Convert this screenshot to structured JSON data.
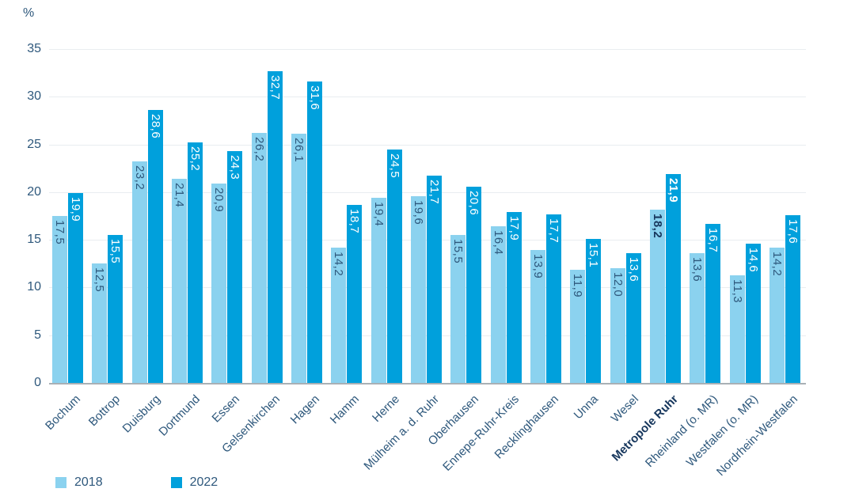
{
  "chart_data": {
    "type": "bar",
    "unit_label": "%",
    "ylim": [
      0,
      35
    ],
    "yticks": [
      0,
      5,
      10,
      15,
      20,
      25,
      30,
      35
    ],
    "grid": true,
    "legend_position": "bottom-left",
    "decimal_separator": ",",
    "categories": [
      "Bochum",
      "Bottrop",
      "Duisburg",
      "Dortmund",
      "Essen",
      "Gelsenkirchen",
      "Hagen",
      "Hamm",
      "Herne",
      "Mülheim a. d. Ruhr",
      "Oberhausen",
      "Ennepe-Ruhr-Kreis",
      "Recklinghausen",
      "Unna",
      "Wesel",
      "Metropole Ruhr",
      "Rheinland (o. MR)",
      "Westfalen (o. MR)",
      "Nordrhein-Westfalen"
    ],
    "emphasized_category": "Metropole Ruhr",
    "series": [
      {
        "name": "2018",
        "color": "#8BD2EF",
        "label_color": "#2E587C",
        "values": [
          17.5,
          12.5,
          23.2,
          21.4,
          20.9,
          26.2,
          26.1,
          14.2,
          19.4,
          19.6,
          15.5,
          16.4,
          13.9,
          11.9,
          12.0,
          18.2,
          13.6,
          11.3,
          14.2
        ]
      },
      {
        "name": "2022",
        "color": "#00A0DC",
        "label_color": "#FFFFFF",
        "values": [
          19.9,
          15.5,
          28.6,
          25.2,
          24.3,
          32.7,
          31.6,
          18.7,
          24.5,
          21.7,
          20.6,
          17.9,
          17.7,
          15.1,
          13.6,
          21.9,
          16.7,
          14.6,
          17.6
        ]
      }
    ]
  },
  "colors": {
    "background": "#FFFFFF",
    "axis_text": "#2E587C",
    "gridline": "#E9EDF0",
    "baseline": "#A9B0B5",
    "emphasis_text": "#17375D"
  },
  "legend": {
    "items": [
      {
        "label": "2018",
        "color": "#8BD2EF"
      },
      {
        "label": "2022",
        "color": "#00A0DC"
      }
    ]
  }
}
